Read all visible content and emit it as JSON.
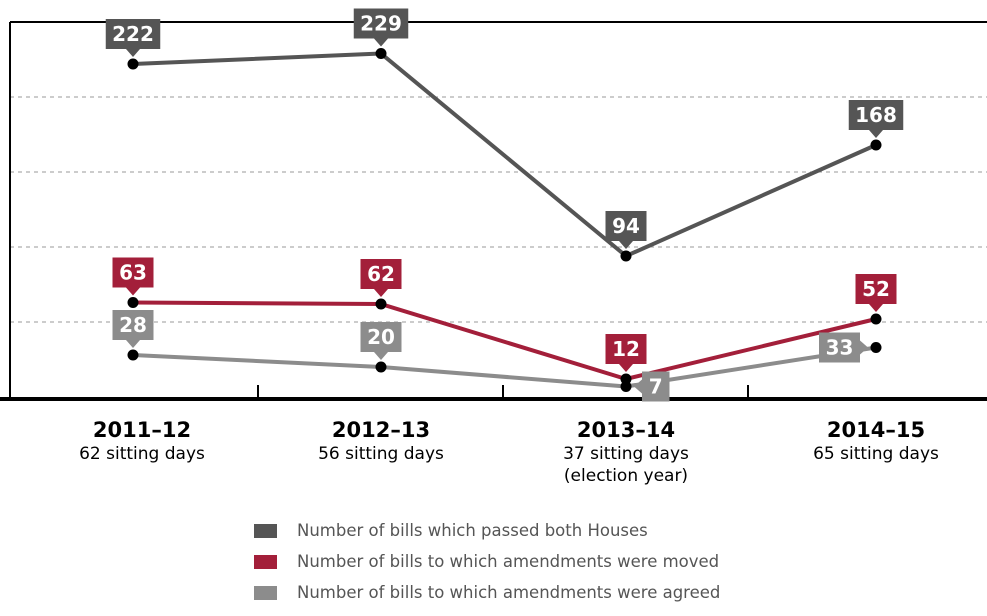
{
  "chart_data": {
    "type": "line",
    "categories": [
      "2011–12",
      "2012–13",
      "2013–14",
      "2014–15"
    ],
    "category_sublabels": [
      "62 sitting days",
      "56 sitting days",
      "37 sitting days",
      "65 sitting days"
    ],
    "category_notes": [
      "",
      "",
      "(election year)",
      ""
    ],
    "series": [
      {
        "name": "Number of bills which passed both Houses",
        "color": "#555555",
        "values": [
          222,
          229,
          94,
          168
        ]
      },
      {
        "name": "Number of bills to which amendments were moved",
        "color": "#a31f3a",
        "values": [
          63,
          62,
          12,
          52
        ]
      },
      {
        "name": "Number of bills to which amendments were agreed",
        "color": "#8c8c8c",
        "values": [
          28,
          20,
          7,
          33
        ]
      }
    ],
    "ylim": [
      0,
      250
    ],
    "grid": true,
    "legend_position": "bottom"
  }
}
